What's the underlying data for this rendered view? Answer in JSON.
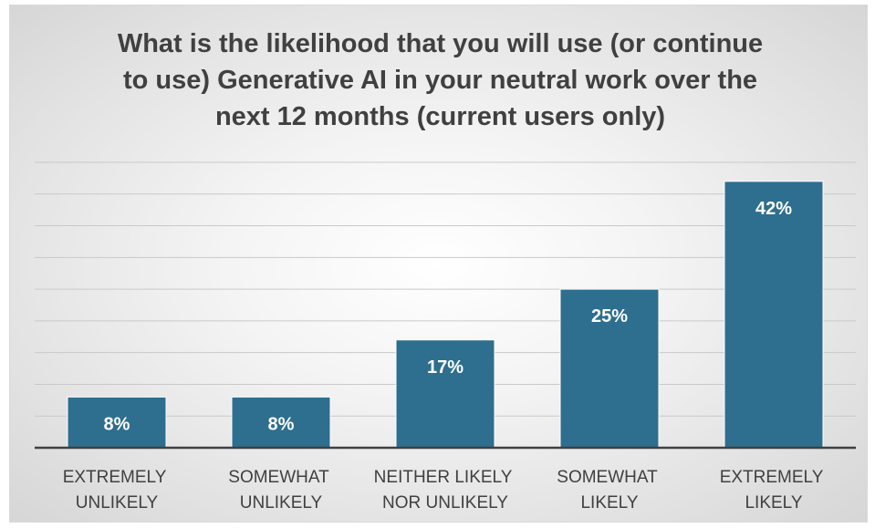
{
  "chart_data": {
    "type": "bar",
    "title": "What is the likelihood that you will use (or continue\nto use) Generative AI in your neutral work over the\nnext 12 months (current users only)",
    "categories": [
      "EXTREMELY UNLIKELY",
      "SOMEWHAT UNLIKELY",
      "NEITHER LIKELY NOR UNLIKELY",
      "SOMEWHAT LIKELY",
      "EXTREMELY LIKELY"
    ],
    "values": [
      8,
      8,
      17,
      25,
      42
    ],
    "data_labels": [
      "8%",
      "8%",
      "17%",
      "25%",
      "42%"
    ],
    "xlabel": "",
    "ylabel": "",
    "ylim": [
      0,
      45
    ],
    "y_gridline_step": 5,
    "grid": true,
    "legend": "none"
  },
  "colors": {
    "bar": "#2E6E8E",
    "bar_outline": "#FFFFFF",
    "title": "#404040",
    "category_label": "#404040",
    "data_label": "#FFFFFF",
    "gridline": "#C9C9C9",
    "axis_line": "#404040"
  }
}
